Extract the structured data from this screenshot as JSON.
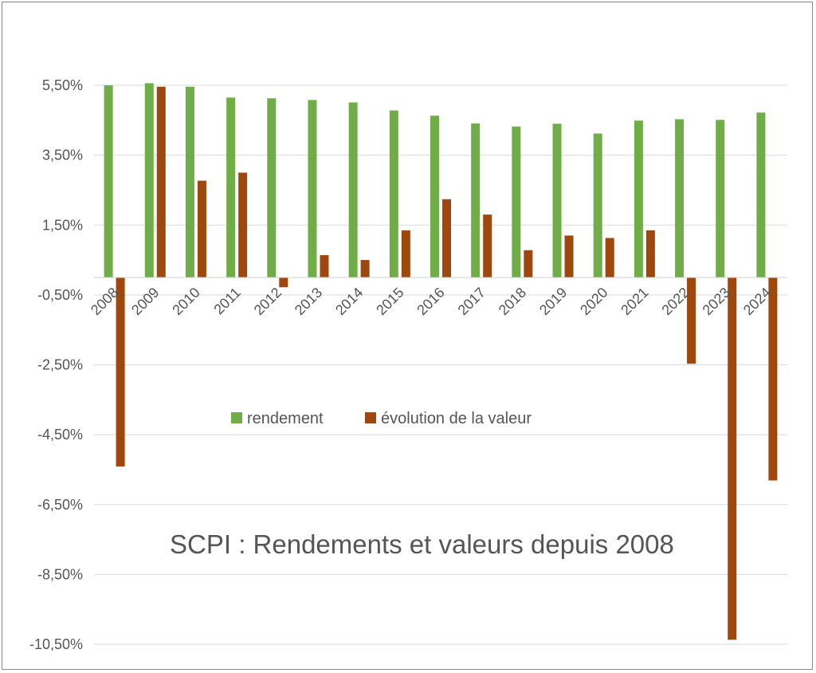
{
  "chart_data": {
    "type": "bar",
    "title": "SCPI : Rendements et valeurs depuis 2008",
    "xlabel": "",
    "ylabel": "",
    "categories": [
      "2008",
      "2009",
      "2010",
      "2011",
      "2012",
      "2013",
      "2014",
      "2015",
      "2016",
      "2017",
      "2018",
      "2019",
      "2020",
      "2021",
      "2022",
      "2023",
      "2024"
    ],
    "series": [
      {
        "name": "rendement",
        "color": "#70AD47",
        "values": [
          5.5,
          5.56,
          5.46,
          5.15,
          5.13,
          5.08,
          5.01,
          4.78,
          4.63,
          4.41,
          4.32,
          4.4,
          4.12,
          4.49,
          4.53,
          4.51,
          4.72
        ]
      },
      {
        "name": "évolution de la valeur",
        "color": "#9E480E",
        "values": [
          -5.41,
          5.46,
          2.77,
          3.0,
          -0.28,
          0.64,
          0.5,
          1.35,
          2.24,
          1.8,
          0.78,
          1.2,
          1.13,
          1.35,
          -2.47,
          -10.37,
          -5.81
        ]
      }
    ],
    "yticks": [
      "5,50%",
      "3,50%",
      "1,50%",
      "-0,50%",
      "-2,50%",
      "-4,50%",
      "-6,50%",
      "-8,50%",
      "-10,50%"
    ],
    "ylim": [
      -10.5,
      5.5
    ],
    "grid": true,
    "legend_position": "center"
  }
}
